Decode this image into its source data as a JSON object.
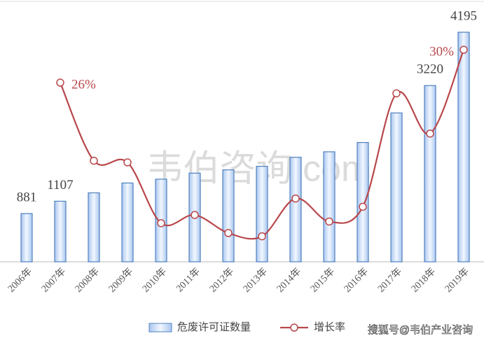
{
  "chart_data": {
    "type": "bar-line",
    "categories": [
      "2006年",
      "2007年",
      "2008年",
      "2009年",
      "2010年",
      "2011年",
      "2012年",
      "2013年",
      "2014年",
      "2015年",
      "2016年",
      "2017年",
      "2018年",
      "2019年"
    ],
    "series": [
      {
        "name": "危废许可证数量",
        "type": "bar",
        "color": "#4f81bd",
        "values": [
          881,
          1107,
          1260,
          1440,
          1510,
          1620,
          1680,
          1745,
          1910,
          2010,
          2180,
          2720,
          3220,
          4195
        ],
        "value_labels": [
          "881",
          "1107",
          null,
          null,
          null,
          null,
          null,
          null,
          null,
          null,
          null,
          null,
          "3220",
          "4195"
        ]
      },
      {
        "name": "增长率",
        "type": "line",
        "axis": "y2",
        "color": "#b8474b",
        "values": [
          null,
          26,
          16.5,
          16.3,
          8.9,
          9.9,
          7.7,
          7.3,
          11.9,
          9.1,
          10.9,
          24.7,
          19.8,
          30
        ],
        "value_labels": [
          null,
          "26%",
          null,
          null,
          null,
          null,
          null,
          null,
          null,
          null,
          null,
          null,
          null,
          "30%"
        ]
      }
    ],
    "ylim": [
      0,
      4400
    ],
    "y2lim": [
      4.2,
      33.5
    ],
    "legend": "bottom",
    "watermark": "韦伯咨询.com",
    "source": "搜狐号@韦伯产业咨询"
  }
}
